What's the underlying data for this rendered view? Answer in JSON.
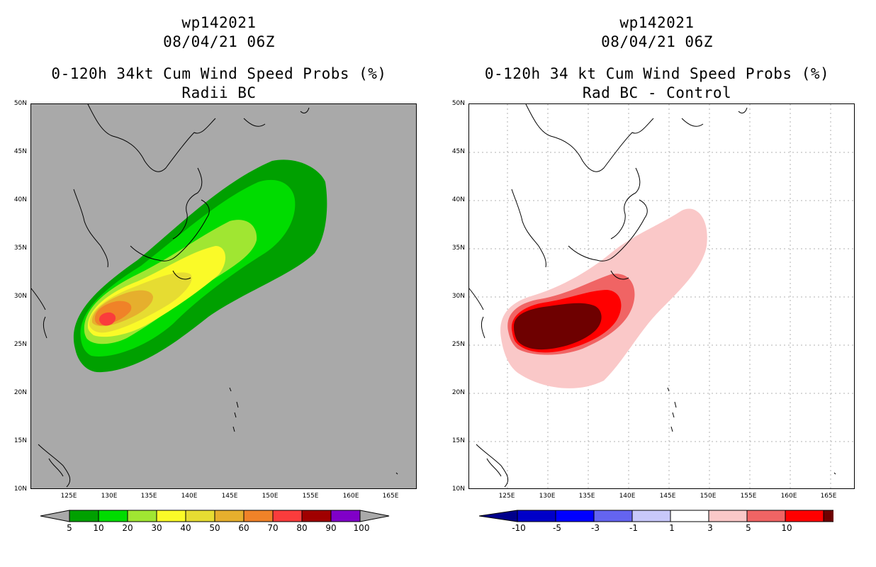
{
  "left_panel": {
    "title_line1": "wp142021",
    "title_line2": "08/04/21 06Z",
    "title_line3": "0-120h 34kt Cum Wind Speed Probs (%)",
    "title_line4": "Radii BC",
    "background_color": "#a9a9a9",
    "colorbar": {
      "labels": [
        "5",
        "10",
        "20",
        "30",
        "40",
        "50",
        "60",
        "70",
        "80",
        "90",
        "100"
      ],
      "colors": [
        "#00a000",
        "#00dc00",
        "#a0e632",
        "#fafa28",
        "#e6dc32",
        "#e6af2d",
        "#f08228",
        "#fa3c3c",
        "#a00000",
        "#8000c8"
      ],
      "under_color": "#a9a9a9",
      "over_color": "#a9a9a9"
    }
  },
  "right_panel": {
    "title_line1": "wp142021",
    "title_line2": "08/04/21 06Z",
    "title_line3": "0-120h 34 kt Cum Wind Speed Probs (%)",
    "title_line4": "Rad BC - Control",
    "background_color": "#ffffff",
    "colorbar": {
      "labels": [
        "-10",
        "-5",
        "-3",
        "-1",
        "1",
        "3",
        "5",
        "10"
      ],
      "colors": [
        "#0000c8",
        "#0000ff",
        "#6464f0",
        "#c8c8fa",
        "#ffffff",
        "#fac8c8",
        "#f06464",
        "#ff0000",
        "#6e0000"
      ],
      "under_color": "#00008b",
      "over_color": "#6e0000"
    }
  },
  "axes": {
    "lat_labels": [
      "50N",
      "45N",
      "40N",
      "35N",
      "30N",
      "25N",
      "20N",
      "15N",
      "10N"
    ],
    "lon_labels": [
      "125E",
      "130E",
      "135E",
      "140E",
      "145E",
      "150E",
      "155E",
      "160E",
      "165E"
    ],
    "lat_range": [
      10,
      50
    ],
    "lon_range": [
      120,
      168
    ]
  },
  "icons": [
    "coastline-map",
    "colorbar-triangle-icon"
  ]
}
